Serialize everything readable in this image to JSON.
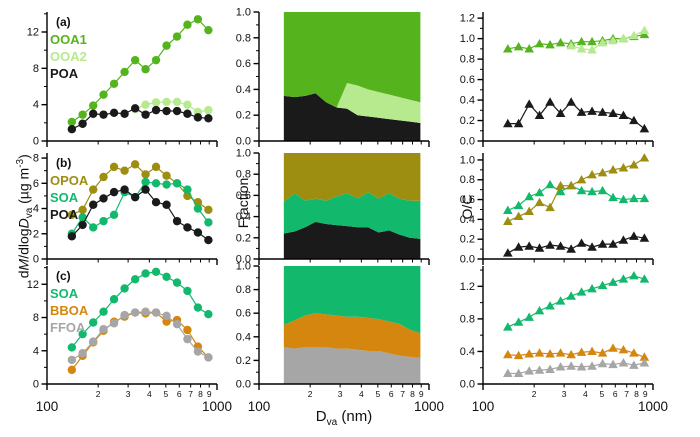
{
  "figure": {
    "axis_titles": {
      "mass_p1": "d",
      "mass_p2": "M",
      "mass_p3": "/dlog",
      "mass_p4": "D",
      "mass_sub": "va",
      "mass_units_pre": " (µg m",
      "mass_units_sup": "-3",
      "mass_units_post": ")",
      "fraction": "Fraction",
      "oc": "O/C",
      "x_p1": "D",
      "x_sub": "va",
      "x_post": " (nm)"
    },
    "x_axis": {
      "log_range": [
        100,
        1000
      ],
      "major_labels": [
        "100",
        "1000"
      ],
      "minor_labels": [
        "2",
        "3",
        "4",
        "5",
        "6",
        "7",
        "8",
        "9"
      ]
    }
  },
  "palette": {
    "ooa1": "#55b41d",
    "ooa2": "#b7e98e",
    "poa": "#1a1a1a",
    "opoa": "#9d8d11",
    "soa": "#12b96d",
    "bboa": "#d4860f",
    "ffoa": "#a6a6a6",
    "axis": "#000000"
  },
  "chart_data": [
    {
      "id": "a_mass",
      "row": 0,
      "col": 0,
      "type": "line",
      "letter": "(a)",
      "xlabel": "Dva (nm)",
      "ylabel": "dM/dlogDva (ug m-3)",
      "x": [
        140,
        162,
        187,
        215,
        248,
        286,
        330,
        380,
        438,
        505,
        582,
        670,
        772,
        890
      ],
      "ylim": [
        0,
        14.2
      ],
      "yticks": [
        0,
        4,
        8,
        12
      ],
      "ydec": 0,
      "legend": [
        {
          "label": "OOA1",
          "color": "ooa1"
        },
        {
          "label": "OOA2",
          "color": "ooa2"
        },
        {
          "label": "POA",
          "color": "poa"
        }
      ],
      "series": [
        {
          "name": "OOA1",
          "color": "ooa1",
          "marker": "circle",
          "x_offset": 0,
          "values": [
            2.1,
            2.9,
            3.9,
            5.1,
            6.3,
            7.6,
            8.9,
            7.9,
            8.9,
            10.5,
            11.5,
            12.8,
            13.4,
            12.2
          ]
        },
        {
          "name": "OOA2",
          "color": "ooa2",
          "marker": "circle",
          "x_offset": 6,
          "values": [
            3.5,
            4.0,
            4.25,
            4.3,
            4.3,
            4.0,
            3.2,
            3.4
          ]
        },
        {
          "name": "POA",
          "color": "poa",
          "marker": "circle",
          "x_offset": 0,
          "values": [
            1.3,
            1.9,
            3.0,
            2.9,
            3.1,
            3.0,
            3.6,
            2.9,
            3.4,
            3.3,
            3.3,
            3.0,
            2.6,
            2.5
          ]
        }
      ]
    },
    {
      "id": "a_frac",
      "row": 0,
      "col": 1,
      "type": "stacked_area",
      "xlabel": "Dva (nm)",
      "ylabel": "Fraction",
      "x": [
        140,
        162,
        187,
        215,
        248,
        286,
        330,
        380,
        438,
        505,
        582,
        670,
        772,
        890
      ],
      "ylim": [
        0,
        1
      ],
      "yticks": [
        0,
        0.2,
        0.4,
        0.6,
        0.8,
        1.0
      ],
      "ydec": 1,
      "layers": [
        {
          "name": "POA",
          "color": "poa",
          "top": [
            0.35,
            0.34,
            0.35,
            0.37,
            0.3,
            0.26,
            0.25,
            0.2,
            0.19,
            0.18,
            0.17,
            0.16,
            0.15,
            0.14
          ]
        },
        {
          "name": "OOA2",
          "color": "ooa2",
          "top": [
            0.35,
            0.34,
            0.35,
            0.37,
            0.3,
            0.26,
            0.45,
            0.43,
            0.4,
            0.38,
            0.36,
            0.34,
            0.32,
            0.3
          ]
        },
        {
          "name": "OOA1",
          "color": "ooa1",
          "top": [
            1,
            1,
            1,
            1,
            1,
            1,
            1,
            1,
            1,
            1,
            1,
            1,
            1,
            1
          ]
        }
      ]
    },
    {
      "id": "a_oc",
      "row": 0,
      "col": 2,
      "type": "line",
      "xlabel": "Dva (nm)",
      "ylabel": "O/C",
      "x": [
        140,
        162,
        187,
        215,
        248,
        286,
        330,
        380,
        438,
        505,
        582,
        670,
        772,
        890
      ],
      "ylim": [
        0,
        1.26
      ],
      "yticks": [
        0,
        0.2,
        0.4,
        0.6,
        0.8,
        1.0,
        1.2
      ],
      "ydec": 1,
      "series": [
        {
          "name": "OOA1",
          "color": "ooa1",
          "marker": "triangle",
          "x_offset": 0,
          "values": [
            0.9,
            0.92,
            0.9,
            0.95,
            0.94,
            0.96,
            0.95,
            0.97,
            0.97,
            0.98,
            1.0,
            1.0,
            1.02,
            1.04
          ]
        },
        {
          "name": "OOA2",
          "color": "ooa2",
          "marker": "triangle",
          "x_offset": 6,
          "values": [
            0.93,
            0.9,
            0.89,
            0.96,
            0.98,
            1.0,
            1.03,
            1.08
          ]
        },
        {
          "name": "POA",
          "color": "poa",
          "marker": "triangle",
          "x_offset": 0,
          "values": [
            0.17,
            0.17,
            0.36,
            0.25,
            0.38,
            0.27,
            0.38,
            0.28,
            0.29,
            0.28,
            0.27,
            0.25,
            0.2,
            0.12
          ]
        }
      ]
    },
    {
      "id": "b_mass",
      "row": 1,
      "col": 0,
      "type": "line",
      "letter": "(b)",
      "xlabel": "Dva (nm)",
      "ylabel": "dM/dlogDva (ug m-3)",
      "x": [
        140,
        162,
        187,
        215,
        248,
        286,
        330,
        380,
        438,
        505,
        582,
        670,
        772,
        890
      ],
      "ylim": [
        0,
        8.4
      ],
      "yticks": [
        0,
        2,
        4,
        6,
        8
      ],
      "ydec": 0,
      "legend": [
        {
          "label": "OPOA",
          "color": "opoa"
        },
        {
          "label": "SOA",
          "color": "soa"
        },
        {
          "label": "POA",
          "color": "poa"
        }
      ],
      "series": [
        {
          "name": "OPOA",
          "color": "opoa",
          "marker": "circle",
          "x_offset": 0,
          "values": [
            3.5,
            3.9,
            5.5,
            6.5,
            7.3,
            7.0,
            7.5,
            6.7,
            7.3,
            6.6,
            6.0,
            5.0,
            4.5,
            3.9
          ]
        },
        {
          "name": "SOA",
          "color": "soa",
          "marker": "circle",
          "x_offset": 0,
          "values": [
            2.0,
            3.3,
            2.5,
            3.0,
            3.5,
            5.3,
            4.9,
            6.1,
            6.0,
            5.9,
            6.0,
            5.5,
            4.0,
            2.9
          ]
        },
        {
          "name": "POA",
          "color": "poa",
          "marker": "circle",
          "x_offset": 0,
          "values": [
            1.8,
            2.7,
            4.3,
            4.8,
            5.3,
            5.5,
            4.9,
            5.5,
            4.5,
            4.3,
            3.0,
            2.5,
            2.1,
            1.5
          ]
        }
      ]
    },
    {
      "id": "b_frac",
      "row": 1,
      "col": 1,
      "type": "stacked_area",
      "xlabel": "Dva (nm)",
      "ylabel": "Fraction",
      "x": [
        140,
        162,
        187,
        215,
        248,
        286,
        330,
        380,
        438,
        505,
        582,
        670,
        772,
        890
      ],
      "ylim": [
        0,
        1
      ],
      "yticks": [
        0,
        0.2,
        0.4,
        0.6,
        0.8,
        1.0
      ],
      "ydec": 1,
      "layers": [
        {
          "name": "POA",
          "color": "poa",
          "top": [
            0.24,
            0.26,
            0.3,
            0.35,
            0.33,
            0.32,
            0.31,
            0.3,
            0.3,
            0.25,
            0.27,
            0.23,
            0.2,
            0.19
          ]
        },
        {
          "name": "SOA",
          "color": "soa",
          "top": [
            0.54,
            0.62,
            0.55,
            0.57,
            0.55,
            0.59,
            0.62,
            0.57,
            0.63,
            0.57,
            0.62,
            0.57,
            0.55,
            0.55
          ]
        },
        {
          "name": "OPOA",
          "color": "opoa",
          "top": [
            1,
            1,
            1,
            1,
            1,
            1,
            1,
            1,
            1,
            1,
            1,
            1,
            1,
            1
          ]
        }
      ]
    },
    {
      "id": "b_oc",
      "row": 1,
      "col": 2,
      "type": "line",
      "xlabel": "Dva (nm)",
      "ylabel": "O/C",
      "x": [
        140,
        162,
        187,
        215,
        248,
        286,
        330,
        380,
        438,
        505,
        582,
        670,
        772,
        890
      ],
      "ylim": [
        0,
        1.07
      ],
      "yticks": [
        0,
        0.2,
        0.4,
        0.6,
        0.8,
        1.0
      ],
      "ydec": 1,
      "series": [
        {
          "name": "SOA",
          "color": "soa",
          "marker": "triangle",
          "x_offset": 0,
          "values": [
            0.49,
            0.54,
            0.63,
            0.67,
            0.75,
            0.68,
            0.74,
            0.69,
            0.68,
            0.69,
            0.62,
            0.6,
            0.61,
            0.61
          ]
        },
        {
          "name": "OPOA",
          "color": "opoa",
          "marker": "triangle",
          "x_offset": 0,
          "values": [
            0.38,
            0.43,
            0.48,
            0.57,
            0.52,
            0.74,
            0.74,
            0.8,
            0.85,
            0.87,
            0.9,
            0.92,
            0.95,
            1.02
          ]
        },
        {
          "name": "POA",
          "color": "poa",
          "marker": "triangle",
          "x_offset": 0,
          "values": [
            0.06,
            0.12,
            0.13,
            0.11,
            0.14,
            0.13,
            0.1,
            0.16,
            0.12,
            0.15,
            0.15,
            0.19,
            0.23,
            0.21
          ]
        }
      ]
    },
    {
      "id": "c_mass",
      "row": 2,
      "col": 0,
      "type": "line",
      "letter": "(c)",
      "xlabel": "Dva (nm)",
      "ylabel": "dM/dlogDva (ug m-3)",
      "x": [
        140,
        162,
        187,
        215,
        248,
        286,
        330,
        380,
        438,
        505,
        582,
        670,
        772,
        890
      ],
      "ylim": [
        0,
        14.2
      ],
      "yticks": [
        0,
        4,
        8,
        12
      ],
      "ydec": 0,
      "legend": [
        {
          "label": "SOA",
          "color": "soa"
        },
        {
          "label": "BBOA",
          "color": "bboa"
        },
        {
          "label": "FFOA",
          "color": "ffoa"
        }
      ],
      "series": [
        {
          "name": "SOA",
          "color": "soa",
          "marker": "circle",
          "x_offset": 0,
          "values": [
            4.4,
            6.0,
            7.4,
            8.7,
            10.2,
            11.5,
            12.6,
            13.3,
            13.5,
            12.9,
            12.2,
            11.2,
            9.2,
            8.4
          ]
        },
        {
          "name": "BBOA",
          "color": "bboa",
          "marker": "circle",
          "x_offset": 0,
          "values": [
            1.7,
            3.4,
            5.0,
            6.4,
            7.5,
            8.1,
            8.6,
            8.5,
            8.6,
            7.5,
            7.7,
            6.5,
            4.5,
            3.2
          ]
        },
        {
          "name": "FFOA",
          "color": "ffoa",
          "marker": "circle",
          "x_offset": 0,
          "values": [
            2.9,
            3.7,
            5.1,
            6.6,
            7.3,
            8.3,
            8.6,
            8.7,
            8.6,
            8.2,
            7.2,
            5.4,
            3.9,
            3.2
          ]
        }
      ]
    },
    {
      "id": "c_frac",
      "row": 2,
      "col": 1,
      "type": "stacked_area",
      "xlabel": "Dva (nm)",
      "ylabel": "Fraction",
      "x": [
        140,
        162,
        187,
        215,
        248,
        286,
        330,
        380,
        438,
        505,
        582,
        670,
        772,
        890
      ],
      "ylim": [
        0,
        1
      ],
      "yticks": [
        0,
        0.2,
        0.4,
        0.6,
        0.8,
        1.0
      ],
      "ydec": 1,
      "layers": [
        {
          "name": "FFOA",
          "color": "ffoa",
          "top": [
            0.31,
            0.3,
            0.31,
            0.31,
            0.31,
            0.3,
            0.3,
            0.29,
            0.28,
            0.28,
            0.26,
            0.24,
            0.23,
            0.22
          ]
        },
        {
          "name": "BBOA",
          "color": "bboa",
          "top": [
            0.5,
            0.54,
            0.58,
            0.6,
            0.59,
            0.58,
            0.57,
            0.57,
            0.56,
            0.55,
            0.53,
            0.51,
            0.46,
            0.43
          ]
        },
        {
          "name": "SOA",
          "color": "soa",
          "top": [
            1,
            1,
            1,
            1,
            1,
            1,
            1,
            1,
            1,
            1,
            1,
            1,
            1,
            1
          ]
        }
      ]
    },
    {
      "id": "c_oc",
      "row": 2,
      "col": 2,
      "type": "line",
      "xlabel": "Dva (nm)",
      "ylabel": "O/C",
      "x": [
        140,
        162,
        187,
        215,
        248,
        286,
        330,
        380,
        438,
        505,
        582,
        670,
        772,
        890
      ],
      "ylim": [
        0,
        1.45
      ],
      "yticks": [
        0,
        0.4,
        0.8,
        1.2
      ],
      "ydec": 1,
      "series": [
        {
          "name": "SOA",
          "color": "soa",
          "marker": "triangle",
          "x_offset": 0,
          "values": [
            0.7,
            0.76,
            0.82,
            0.9,
            0.96,
            1.02,
            1.08,
            1.13,
            1.17,
            1.21,
            1.25,
            1.29,
            1.33,
            1.29
          ]
        },
        {
          "name": "BBOA",
          "color": "bboa",
          "marker": "triangle",
          "x_offset": 0,
          "values": [
            0.36,
            0.35,
            0.37,
            0.38,
            0.37,
            0.38,
            0.36,
            0.39,
            0.4,
            0.38,
            0.44,
            0.42,
            0.38,
            0.33
          ]
        },
        {
          "name": "FFOA",
          "color": "ffoa",
          "marker": "triangle",
          "x_offset": 0,
          "values": [
            0.13,
            0.13,
            0.16,
            0.17,
            0.18,
            0.21,
            0.22,
            0.21,
            0.22,
            0.25,
            0.24,
            0.26,
            0.23,
            0.26
          ]
        }
      ]
    }
  ]
}
